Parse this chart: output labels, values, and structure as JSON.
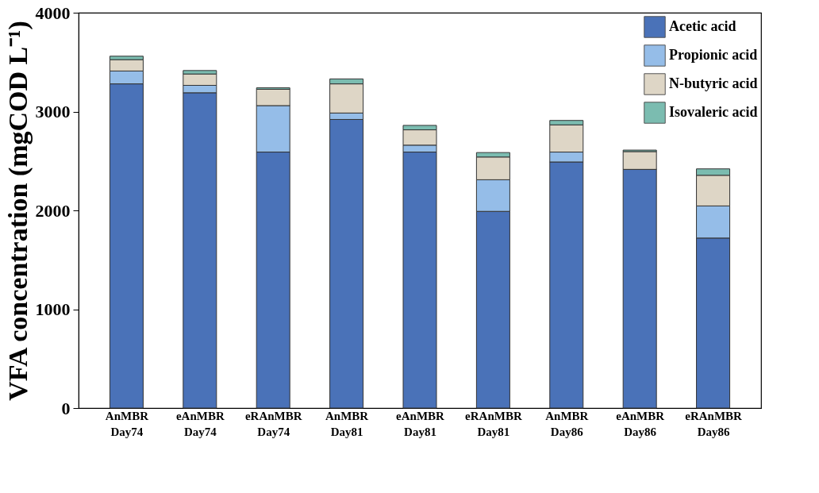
{
  "chart_data": {
    "type": "bar",
    "stacked": true,
    "ylabel": "VFA concentration (mgCOD L⁻¹)",
    "categories": [
      "AnMBR Day74",
      "eAnMBR Day74",
      "eRAnMBR Day74",
      "AnMBR Day81",
      "eAnMBR Day81",
      "eRAnMBR Day81",
      "AnMBR Day86",
      "eAnMBR Day86",
      "eRAnMBR Day86"
    ],
    "series": [
      {
        "name": "Acetic acid",
        "color": "#4a72b8",
        "values": [
          3280,
          3190,
          2590,
          2920,
          2590,
          1990,
          2490,
          2415,
          1720
        ]
      },
      {
        "name": "Propionic acid",
        "color": "#95bde8",
        "values": [
          130,
          75,
          470,
          65,
          70,
          320,
          100,
          0,
          325
        ]
      },
      {
        "name": "N-butyric acid",
        "color": "#ded6c6",
        "values": [
          115,
          115,
          165,
          295,
          155,
          230,
          275,
          180,
          310
        ]
      },
      {
        "name": "Isovaleric acid",
        "color": "#7bbcb0",
        "values": [
          35,
          35,
          15,
          50,
          45,
          45,
          45,
          15,
          65
        ]
      }
    ],
    "ylim": [
      0,
      4000
    ],
    "yticks": [
      0,
      1000,
      2000,
      3000,
      4000
    ],
    "grid": false,
    "legend": "top right"
  }
}
